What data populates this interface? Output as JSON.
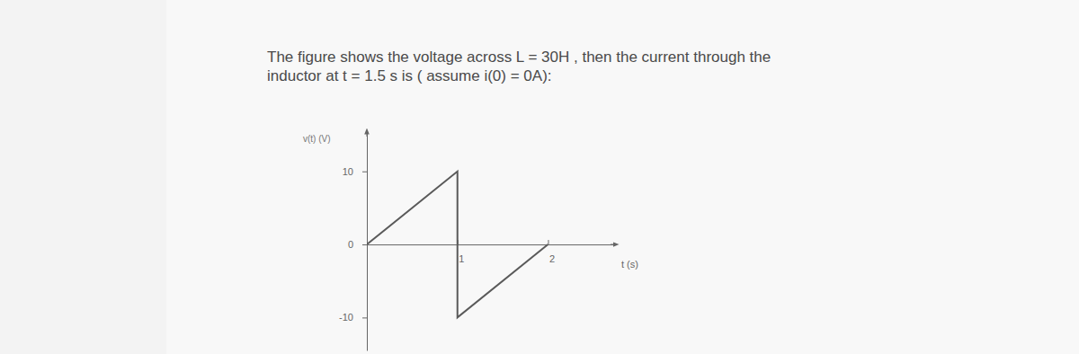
{
  "question": [
    "The figure shows the voltage across L = 30H , then the current through the",
    "inductor at t = 1.5 s is ( assume i(0) = 0A):"
  ],
  "chart_data": {
    "type": "line",
    "x_label": "t (s)",
    "y_label": "v(t) (V)",
    "x": [
      0,
      1,
      1,
      2
    ],
    "values": [
      0,
      10,
      -10,
      0
    ],
    "color": "#5a5a5a",
    "xlim": [
      0,
      2.75
    ],
    "xticks": [
      1,
      2
    ],
    "ylim": [
      -14.5,
      15.5
    ],
    "yticks": [
      -10,
      0,
      10
    ],
    "grid": false
  }
}
